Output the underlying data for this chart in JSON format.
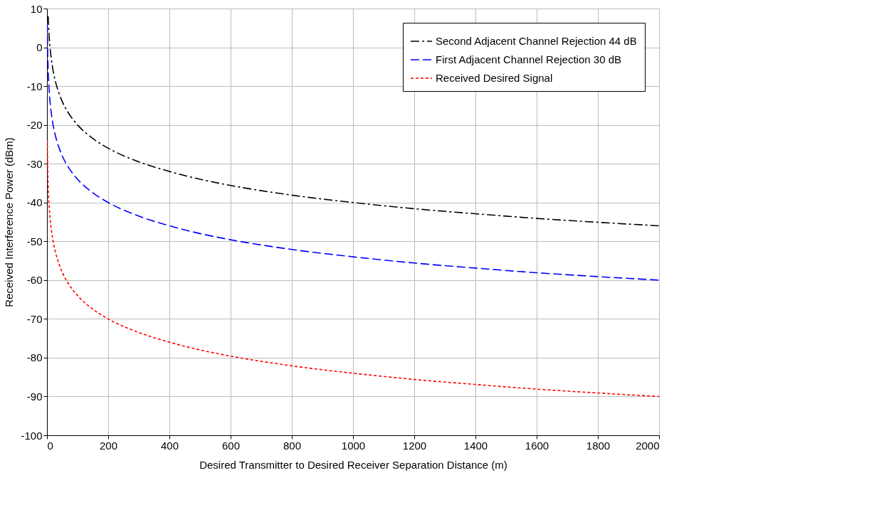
{
  "chart_data": {
    "type": "line",
    "xlabel": "Desired Transmitter to Desired Receiver Separation Distance (m)",
    "ylabel": "Received Interference Power (dBm)",
    "xlim": [
      0,
      2000
    ],
    "xticks": [
      0,
      200,
      400,
      600,
      800,
      1000,
      1200,
      1400,
      1600,
      1800,
      2000
    ],
    "ylim": [
      -100,
      10
    ],
    "yticks": [
      -100,
      -90,
      -80,
      -70,
      -60,
      -50,
      -40,
      -30,
      -20,
      -10,
      0,
      10
    ],
    "grid": true,
    "legend": "top right",
    "marker": "none",
    "series": [
      {
        "name": "Second Adjacent Channel Rejection 44 dB",
        "color": "#000000",
        "line_style": "dashdot",
        "x": [
          4,
          5,
          7,
          10,
          15,
          20,
          30,
          40,
          50,
          70,
          100,
          150,
          200,
          300,
          400,
          500,
          600,
          800,
          1000,
          1200,
          1400,
          1600,
          1800,
          2000
        ],
        "values": [
          8,
          6,
          3.1,
          0,
          -3.5,
          -6,
          -9.5,
          -12,
          -14,
          -16.9,
          -20,
          -23.5,
          -26,
          -29.5,
          -32,
          -34,
          -35.6,
          -38.1,
          -40,
          -41.6,
          -42.9,
          -44.1,
          -45.1,
          -46
        ]
      },
      {
        "name": "First Adjacent Channel Rejection 30 dB",
        "color": "#0000ff",
        "line_style": "dashed",
        "x": [
          1,
          2,
          3,
          4,
          5,
          7,
          10,
          15,
          20,
          30,
          40,
          50,
          70,
          100,
          150,
          200,
          300,
          400,
          500,
          600,
          800,
          1000,
          1200,
          1400,
          1600,
          1800,
          2000
        ],
        "values": [
          6,
          0,
          -3.5,
          -6,
          -8,
          -10.9,
          -14,
          -17.5,
          -20,
          -23.5,
          -26,
          -28,
          -30.9,
          -34,
          -37.5,
          -40,
          -43.5,
          -46,
          -48,
          -49.6,
          -52.1,
          -54,
          -55.6,
          -56.9,
          -58.1,
          -59.1,
          -60
        ]
      },
      {
        "name": "Received Desired Signal",
        "color": "#ff0000",
        "line_style": "dotted",
        "x": [
          1,
          2,
          3,
          4,
          5,
          7,
          10,
          15,
          20,
          30,
          40,
          50,
          70,
          100,
          150,
          200,
          300,
          400,
          500,
          600,
          800,
          1000,
          1200,
          1400,
          1600,
          1800,
          2000
        ],
        "values": [
          -24,
          -30,
          -33.5,
          -36,
          -38,
          -40.9,
          -44,
          -47.5,
          -50,
          -53.5,
          -56,
          -58,
          -60.9,
          -64,
          -67.5,
          -70,
          -73.5,
          -76,
          -78,
          -79.6,
          -82.1,
          -84,
          -85.6,
          -86.9,
          -88.1,
          -89.1,
          -90
        ]
      }
    ]
  }
}
